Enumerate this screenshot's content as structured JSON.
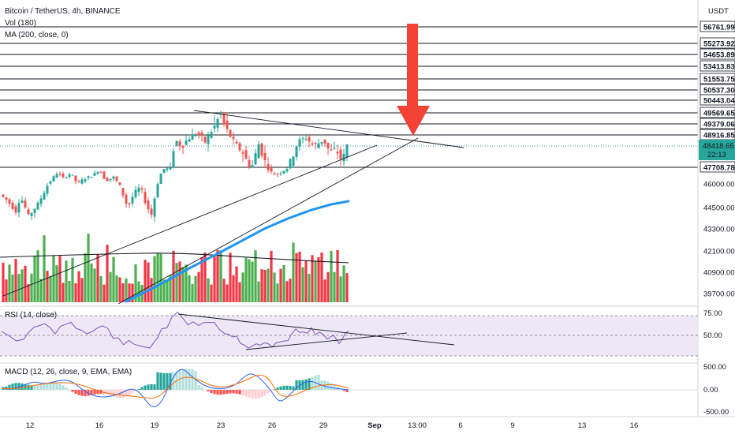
{
  "legend": {
    "title": "Bitcoin / TetherUS, 4h, BINANCE",
    "vol": "Vol (180)",
    "ma": "MA (200, close, 0)",
    "rsi": "RSI (14, close)",
    "macd": "MACD (12, 26, close, 9, EMA, EMA)"
  },
  "currency_badge": "USDT",
  "colors": {
    "up": "#26a69a",
    "down": "#ef5350",
    "vol_up": "#4caf50",
    "vol_down": "#f23645",
    "ma": "#2196f3",
    "rsi": "#7e57c2",
    "rsi_band": "#ede7f6",
    "macd": "#2962ff",
    "signal": "#ff6d00",
    "arrow": "#f44336",
    "current_price": "#26a69a"
  },
  "chart_data": {
    "type": "candlestick",
    "x_ticks": [
      "12",
      "16",
      "19",
      "23",
      "26",
      "29",
      "Sep",
      "13:00",
      "6",
      "9",
      "13",
      "16"
    ],
    "price_axis_labels": [
      "46000.00",
      "44500.00",
      "43300.00",
      "42100.00",
      "40900.00",
      "39700.00"
    ],
    "horizontal_levels": [
      56761.99,
      55273.92,
      54653.89,
      53413.83,
      51553.75,
      50537.3,
      50443.04,
      49569.65,
      49379.06,
      48916.85,
      47708.78
    ],
    "current_price": "48418.65",
    "countdown": "22:13",
    "rsi_axis": [
      "75.00",
      "50.00"
    ],
    "macd_axis": [
      "500.00",
      "0.00",
      "-500.00"
    ]
  }
}
